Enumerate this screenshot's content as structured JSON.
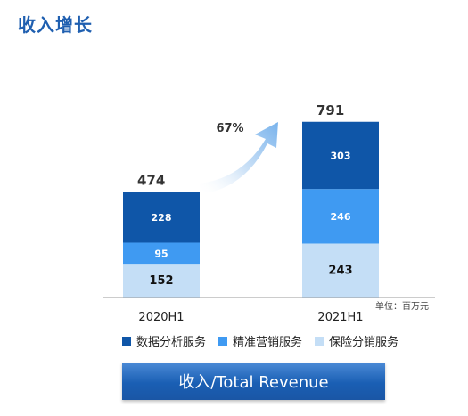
{
  "page": {
    "title": "收入增长",
    "unit": "单位：百万元",
    "banner": "收入/Total Revenue"
  },
  "growth_label": "67%",
  "legend": [
    {
      "label": "数据分析服务",
      "color": "#0f56a8"
    },
    {
      "label": "精准营销服务",
      "color": "#3f9af2"
    },
    {
      "label": "保险分销服务",
      "color": "#c4def6"
    }
  ],
  "chart_data": {
    "type": "bar",
    "stacked": true,
    "categories": [
      "2020H1",
      "2021H1"
    ],
    "totals": [
      474,
      791
    ],
    "series": [
      {
        "name": "保险分销服务",
        "values": [
          152,
          243
        ],
        "color": "#c4def6"
      },
      {
        "name": "精准营销服务",
        "values": [
          95,
          246
        ],
        "color": "#3f9af2"
      },
      {
        "name": "数据分析服务",
        "values": [
          228,
          303
        ],
        "color": "#0f56a8"
      }
    ],
    "title": "",
    "xlabel": "",
    "ylabel": ""
  }
}
